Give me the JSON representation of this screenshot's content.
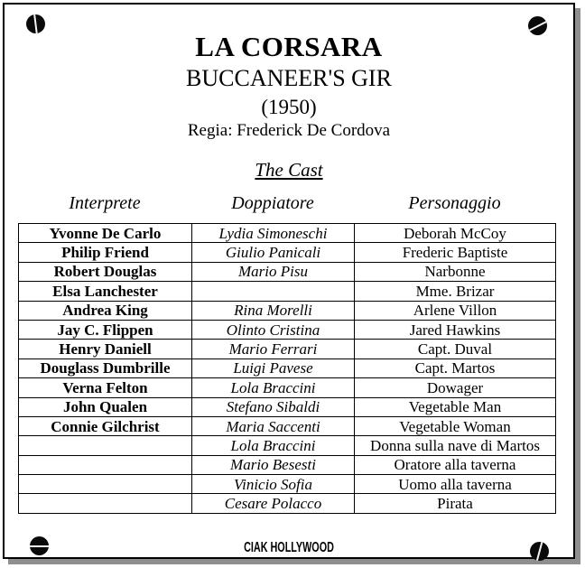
{
  "header": {
    "title_it": "LA CORSARA",
    "title_en": "BUCCANEER'S GIR",
    "year": "(1950)",
    "director": "Regia: Frederick De Cordova",
    "cast_heading": "The Cast"
  },
  "table": {
    "headers": [
      "Interprete",
      "Doppiatore",
      "Personaggio"
    ],
    "rows": [
      [
        "Yvonne De Carlo",
        "Lydia Simoneschi",
        "Deborah McCoy"
      ],
      [
        "Philip Friend",
        "Giulio Panicali",
        "Frederic Baptiste"
      ],
      [
        "Robert Douglas",
        "Mario Pisu",
        "Narbonne"
      ],
      [
        "Elsa Lanchester",
        "",
        "Mme. Brizar"
      ],
      [
        "Andrea King",
        "Rina Morelli",
        "Arlene Villon"
      ],
      [
        "Jay C. Flippen",
        "Olinto Cristina",
        "Jared Hawkins"
      ],
      [
        "Henry Daniell",
        "Mario Ferrari",
        "Capt. Duval"
      ],
      [
        "Douglass Dumbrille",
        "Luigi Pavese",
        "Capt. Martos"
      ],
      [
        "Verna Felton",
        "Lola Braccini",
        "Dowager"
      ],
      [
        "John Qualen",
        "Stefano Sibaldi",
        "Vegetable Man"
      ],
      [
        "Connie Gilchrist",
        "Maria Saccenti",
        "Vegetable Woman"
      ],
      [
        "",
        "Lola Braccini",
        "Donna sulla nave di Martos"
      ],
      [
        "",
        "Mario Besesti",
        "Oratore alla taverna"
      ],
      [
        "",
        "Vinicio Sofia",
        "Uomo alla taverna"
      ],
      [
        "",
        "Cesare Polacco",
        "Pirata"
      ]
    ]
  },
  "footer": {
    "logo": "CIAK HOLLYWOOD"
  },
  "icons": {
    "screw_corners": [
      "top-left",
      "top-right",
      "bottom-left",
      "bottom-right"
    ]
  },
  "colors": {
    "page_background": "#ffffff",
    "page_border": "#000000",
    "shadow": "#8f8f8f",
    "text": "#000000"
  }
}
